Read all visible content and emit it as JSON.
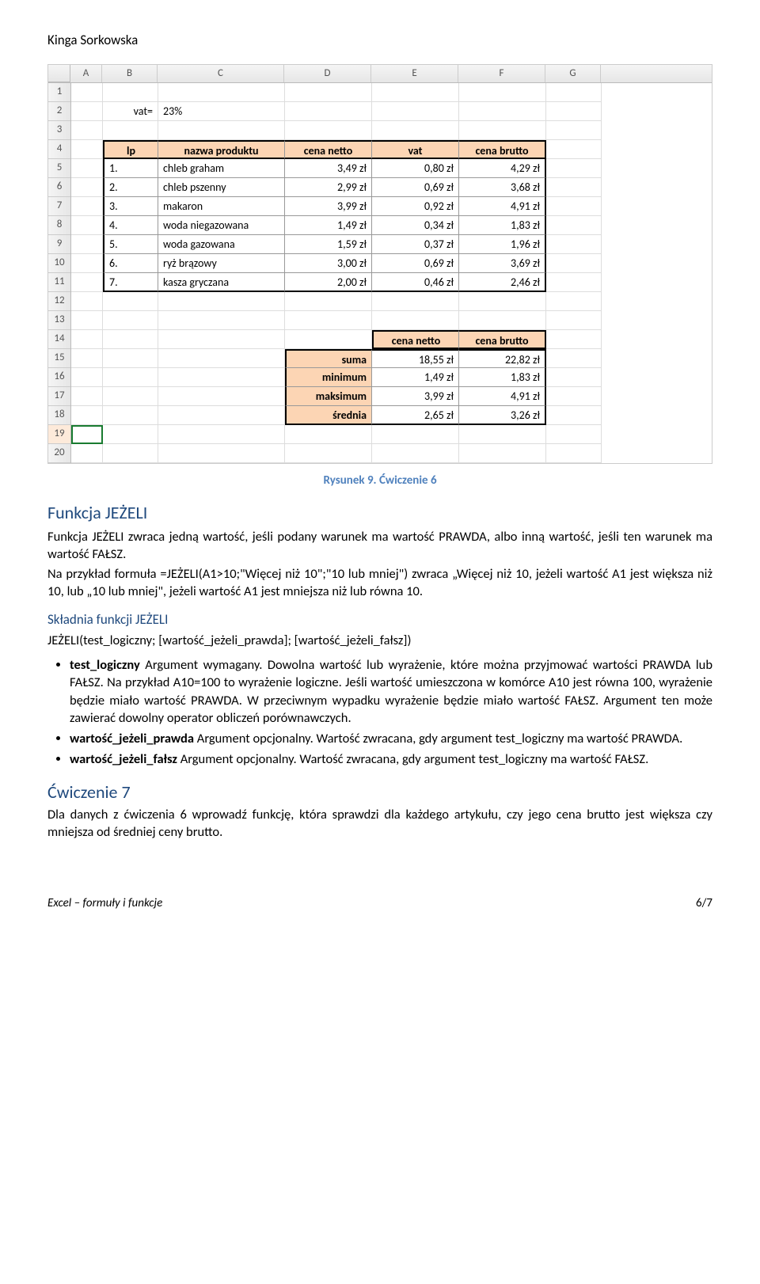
{
  "author": "Kinga Sorkowska",
  "colors": {
    "header_fill": "#fcd5b4",
    "accent": "#1f497d",
    "caption": "#4f81bd",
    "grid_line": "#dddddd",
    "thick_border": "#000000",
    "selected_border": "#197b30"
  },
  "spreadsheet": {
    "columns": [
      "A",
      "B",
      "C",
      "D",
      "E",
      "F",
      "G"
    ],
    "row_count": 20,
    "selected_row": 19,
    "vat_label": "vat=",
    "vat_value": "23%",
    "headers": {
      "lp": "lp",
      "nazwa": "nazwa produktu",
      "netto": "cena netto",
      "vat": "vat",
      "brutto": "cena brutto"
    },
    "rows": [
      {
        "lp": "1.",
        "nazwa": "chleb graham",
        "netto": "3,49 zł",
        "vat": "0,80 zł",
        "brutto": "4,29 zł"
      },
      {
        "lp": "2.",
        "nazwa": "chleb pszenny",
        "netto": "2,99 zł",
        "vat": "0,69 zł",
        "brutto": "3,68 zł"
      },
      {
        "lp": "3.",
        "nazwa": "makaron",
        "netto": "3,99 zł",
        "vat": "0,92 zł",
        "brutto": "4,91 zł"
      },
      {
        "lp": "4.",
        "nazwa": "woda niegazowana",
        "netto": "1,49 zł",
        "vat": "0,34 zł",
        "brutto": "1,83 zł"
      },
      {
        "lp": "5.",
        "nazwa": "woda gazowana",
        "netto": "1,59 zł",
        "vat": "0,37 zł",
        "brutto": "1,96 zł"
      },
      {
        "lp": "6.",
        "nazwa": "ryż brązowy",
        "netto": "3,00 zł",
        "vat": "0,69 zł",
        "brutto": "3,69 zł"
      },
      {
        "lp": "7.",
        "nazwa": "kasza gryczana",
        "netto": "2,00 zł",
        "vat": "0,46 zł",
        "brutto": "2,46 zł"
      }
    ],
    "summary_headers": {
      "netto": "cena netto",
      "brutto": "cena brutto"
    },
    "summary": [
      {
        "label": "suma",
        "netto": "18,55 zł",
        "brutto": "22,82 zł"
      },
      {
        "label": "minimum",
        "netto": "1,49 zł",
        "brutto": "1,83 zł"
      },
      {
        "label": "maksimum",
        "netto": "3,99 zł",
        "brutto": "4,91 zł"
      },
      {
        "label": "średnia",
        "netto": "2,65 zł",
        "brutto": "3,26 zł"
      }
    ]
  },
  "caption": "Rysunek 9. Ćwiczenie 6",
  "section": {
    "title": "Funkcja JEŻELI",
    "para1": "Funkcja JEŻELI zwraca jedną wartość, jeśli podany warunek ma wartość PRAWDA, albo inną wartość, jeśli ten warunek ma wartość FAŁSZ.",
    "para2": "Na przykład formuła =JEŻELI(A1>10;\"Więcej niż 10\";\"10 lub mniej\") zwraca „Więcej niż 10, jeżeli wartość A1 jest większa niż 10, lub „10 lub mniej\", jeżeli wartość A1 jest mniejsza niż lub równa 10.",
    "subtitle": "Składnia funkcji JEŻELI",
    "syntax": "JEŻELI(test_logiczny; [wartość_jeżeli_prawda]; [wartość_jeżeli_fałsz])",
    "bullets": [
      {
        "arg": "test_logiczny",
        "rest": "    Argument wymagany. Dowolna wartość lub wyrażenie, które można przyjmować wartości PRAWDA lub FAŁSZ. Na przykład A10=100 to wyrażenie logiczne. Jeśli wartość umieszczona w komórce A10 jest równa 100, wyrażenie będzie miało wartość PRAWDA. W przeciwnym wypadku wyrażenie będzie miało wartość FAŁSZ. Argument ten może zawierać dowolny operator obliczeń porównawczych."
      },
      {
        "arg": "wartość_jeżeli_prawda",
        "rest": "    Argument opcjonalny. Wartość zwracana, gdy argument test_logiczny ma wartość PRAWDA."
      },
      {
        "arg": "wartość_jeżeli_fałsz",
        "rest": "    Argument opcjonalny. Wartość zwracana, gdy argument test_logiczny ma wartość FAŁSZ."
      }
    ]
  },
  "exercise": {
    "title": "Ćwiczenie 7",
    "text": "Dla danych z ćwiczenia 6 wprowadź funkcję, która sprawdzi dla każdego artykułu, czy jego cena brutto jest większa czy mniejsza od średniej ceny brutto."
  },
  "footer": {
    "left": "Excel – formuły i funkcje",
    "right": "6/7"
  }
}
